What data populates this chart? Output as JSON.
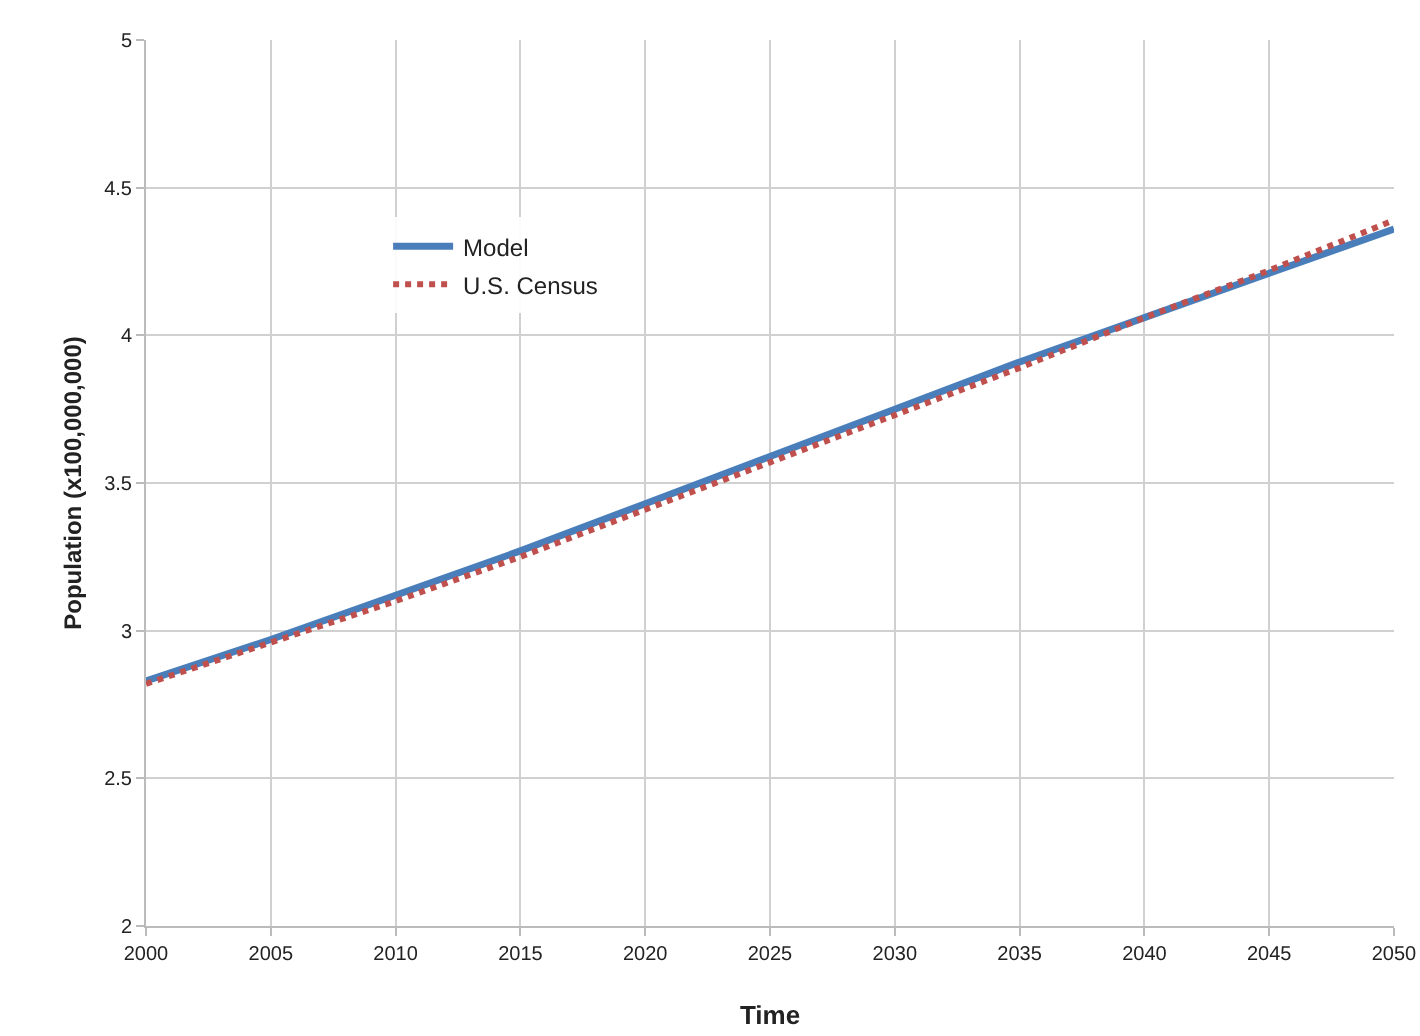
{
  "chart_data": {
    "type": "line",
    "xlabel": "Time",
    "ylabel": "Population (x100,000,000)",
    "x": [
      2000,
      2005,
      2010,
      2015,
      2020,
      2025,
      2030,
      2035,
      2040,
      2045,
      2050
    ],
    "series": [
      {
        "name": "Model",
        "color": "#4a7ebb",
        "line_style": "solid",
        "values": [
          2.83,
          2.97,
          3.12,
          3.27,
          3.43,
          3.59,
          3.75,
          3.91,
          4.06,
          4.21,
          4.36
        ]
      },
      {
        "name": "U.S. Census",
        "color": "#c0504d",
        "line_style": "dotted",
        "values": [
          2.82,
          2.96,
          3.1,
          3.25,
          3.41,
          3.57,
          3.73,
          3.89,
          4.06,
          4.22,
          4.39
        ]
      }
    ],
    "xlim": [
      2000,
      2050
    ],
    "xticks": [
      2000,
      2005,
      2010,
      2015,
      2020,
      2025,
      2030,
      2035,
      2040,
      2045,
      2050
    ],
    "ylim": [
      2,
      5
    ],
    "yticks": [
      2,
      2.5,
      3,
      3.5,
      4,
      4.5,
      5
    ],
    "grid": true,
    "legend": "top left",
    "marker": "none"
  }
}
